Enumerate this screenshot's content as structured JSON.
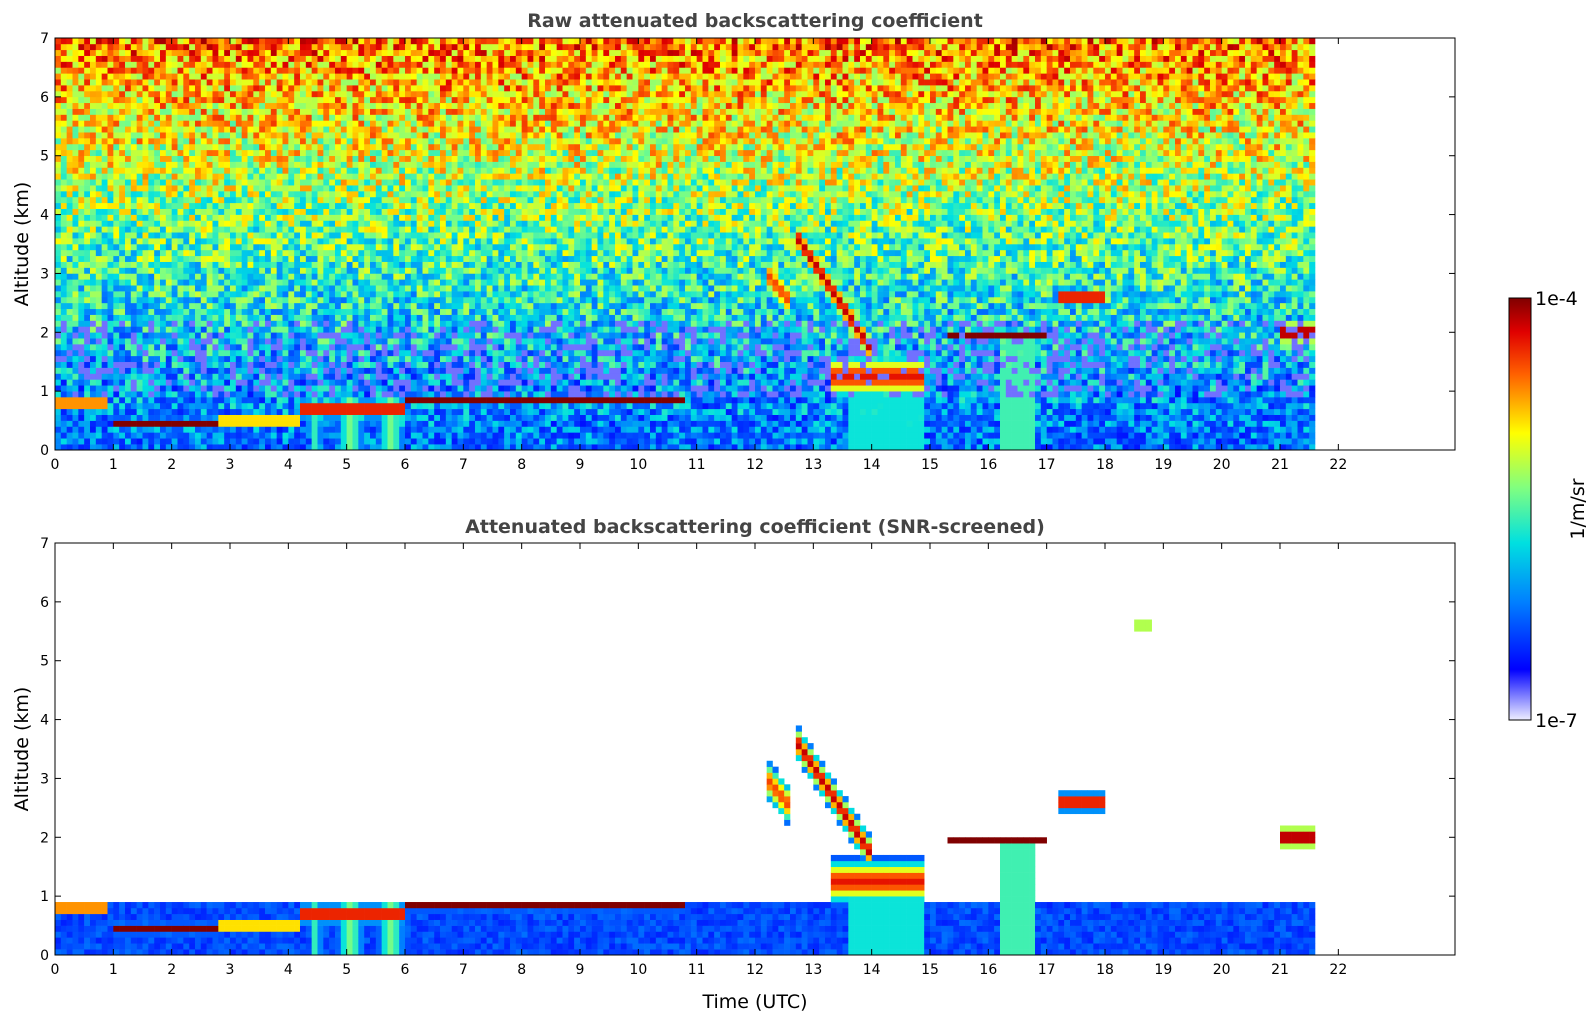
{
  "chart_data": [
    {
      "type": "heatmap",
      "title": "Raw attenuated backscattering coefficient",
      "xlabel": "",
      "ylabel": "Altitude (km)",
      "xlim": [
        0,
        24
      ],
      "ylim": [
        0,
        7
      ],
      "data_extent_x": [
        0,
        21.6
      ],
      "x_ticks": [
        "0",
        "1",
        "2",
        "3",
        "4",
        "5",
        "6",
        "7",
        "8",
        "9",
        "10",
        "11",
        "12",
        "13",
        "14",
        "15",
        "16",
        "17",
        "18",
        "19",
        "20",
        "21",
        "22"
      ],
      "y_ticks": [
        "0",
        "1",
        "2",
        "3",
        "4",
        "5",
        "6",
        "7"
      ],
      "features": {
        "boundary_layer_top_km": 0.9,
        "cloud_layers": [
          {
            "t_start": 0,
            "t_end": 0.9,
            "alt_km": 0.8
          },
          {
            "t_start": 1.0,
            "t_end": 2.8,
            "alt_km": 0.45
          },
          {
            "t_start": 2.8,
            "t_end": 4.2,
            "alt_km": 0.5
          },
          {
            "t_start": 4.2,
            "t_end": 6.0,
            "alt_km": 0.7
          },
          {
            "t_start": 6.0,
            "t_end": 10.8,
            "alt_km": 0.85
          },
          {
            "t_start": 13.3,
            "t_end": 14.9,
            "alt_km": 1.3
          },
          {
            "t_start": 15.3,
            "t_end": 17.0,
            "alt_km": 1.95
          },
          {
            "t_start": 17.2,
            "t_end": 18.0,
            "alt_km": 2.6
          },
          {
            "t_start": 18.5,
            "t_end": 18.8,
            "alt_km": 5.6
          },
          {
            "t_start": 21.0,
            "t_end": 21.6,
            "alt_km": 2.0
          }
        ]
      }
    },
    {
      "type": "heatmap",
      "title": "Attenuated backscattering coefficient (SNR-screened)",
      "xlabel": "Time (UTC)",
      "ylabel": "Altitude (km)",
      "xlim": [
        0,
        24
      ],
      "ylim": [
        0,
        7
      ],
      "data_extent_x": [
        0,
        21.6
      ],
      "x_ticks": [
        "0",
        "1",
        "2",
        "3",
        "4",
        "5",
        "6",
        "7",
        "8",
        "9",
        "10",
        "11",
        "12",
        "13",
        "14",
        "15",
        "16",
        "17",
        "18",
        "19",
        "20",
        "21",
        "22"
      ],
      "y_ticks": [
        "0",
        "1",
        "2",
        "3",
        "4",
        "5",
        "6",
        "7"
      ]
    }
  ],
  "colorbar": {
    "label": "1/m/sr",
    "min_label": "1e-7",
    "max_label": "1e-4",
    "scale": "log",
    "colormap": "jet",
    "colors": [
      "#e6e6f5",
      "#0000ff",
      "#00c8ff",
      "#ffff00",
      "#ff0000",
      "#800000"
    ]
  }
}
